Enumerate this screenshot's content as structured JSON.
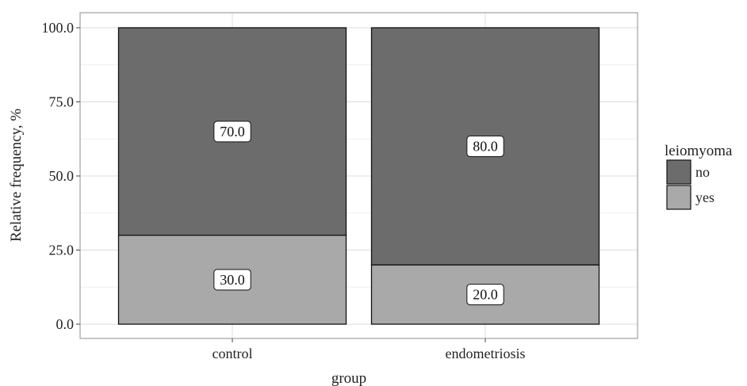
{
  "chart_data": {
    "type": "bar",
    "stacked": true,
    "categories": [
      "control",
      "endometriosis"
    ],
    "series": [
      {
        "name": "yes",
        "values": [
          30.0,
          20.0
        ],
        "labels": [
          "30.0",
          "20.0"
        ],
        "color": "#a9a9a9"
      },
      {
        "name": "no",
        "values": [
          70.0,
          80.0
        ],
        "labels": [
          "70.0",
          "80.0"
        ],
        "color": "#6c6c6c"
      }
    ],
    "xlabel": "group",
    "ylabel": "Relative frequency, %",
    "ylim": [
      0,
      100
    ],
    "yticks": [
      "0.0",
      "25.0",
      "50.0",
      "75.0",
      "100.0"
    ],
    "grid": true,
    "legend": {
      "title": "leiomyoma",
      "position": "right",
      "entries": [
        {
          "label": "no",
          "color": "#6c6c6c"
        },
        {
          "label": "yes",
          "color": "#a9a9a9"
        }
      ]
    }
  }
}
